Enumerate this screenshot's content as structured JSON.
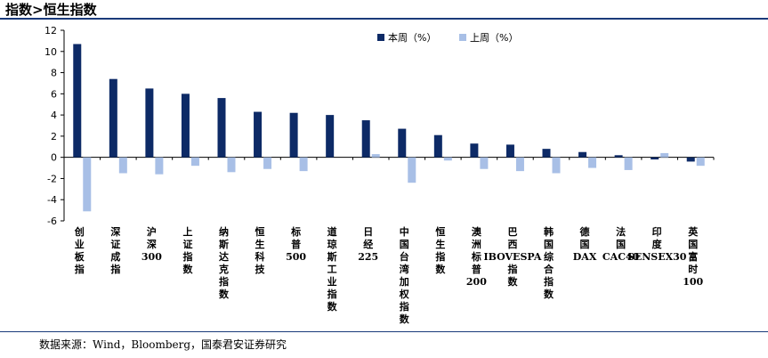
{
  "header": {
    "title": "指数>恒生指数"
  },
  "footer": {
    "source": "数据来源：Wind，Bloomberg，国泰君安证券研究"
  },
  "colors": {
    "current": "#0d2a66",
    "previous": "#a8bfe6",
    "rule": "#1a3a7a"
  },
  "chart_data": {
    "type": "bar",
    "title": "",
    "xlabel": "",
    "ylabel": "",
    "ylim": [
      -6,
      12
    ],
    "yticks": [
      12,
      10,
      8,
      6,
      4,
      2,
      0,
      -2,
      -4,
      -6
    ],
    "grid": false,
    "legend_position": "top-center",
    "categories": [
      "创业板指",
      "深证成指",
      "沪深300",
      "上证指数",
      "纳斯达克指数",
      "恒生科技",
      "标普500",
      "道琼斯工业指数",
      "日经225",
      "中国台湾加权指数",
      "恒生指数",
      "澳洲标普200",
      "巴西IBOVESPA指数",
      "韩国综合指数",
      "德国DAX",
      "法国CAC40",
      "印度SENSEX30",
      "英国富时100"
    ],
    "series": [
      {
        "name": "本周（%）",
        "values": [
          10.7,
          7.4,
          6.5,
          6.0,
          5.6,
          4.3,
          4.2,
          4.0,
          3.5,
          2.7,
          2.1,
          1.3,
          1.2,
          0.8,
          0.5,
          0.2,
          -0.2,
          -0.4
        ]
      },
      {
        "name": "上周（%）",
        "values": [
          -5.1,
          -1.5,
          -1.6,
          -0.8,
          -1.4,
          -1.1,
          -1.3,
          0.0,
          0.3,
          -2.4,
          -0.3,
          -1.1,
          -1.3,
          -1.5,
          -1.0,
          -1.2,
          0.4,
          -0.8
        ]
      }
    ]
  }
}
